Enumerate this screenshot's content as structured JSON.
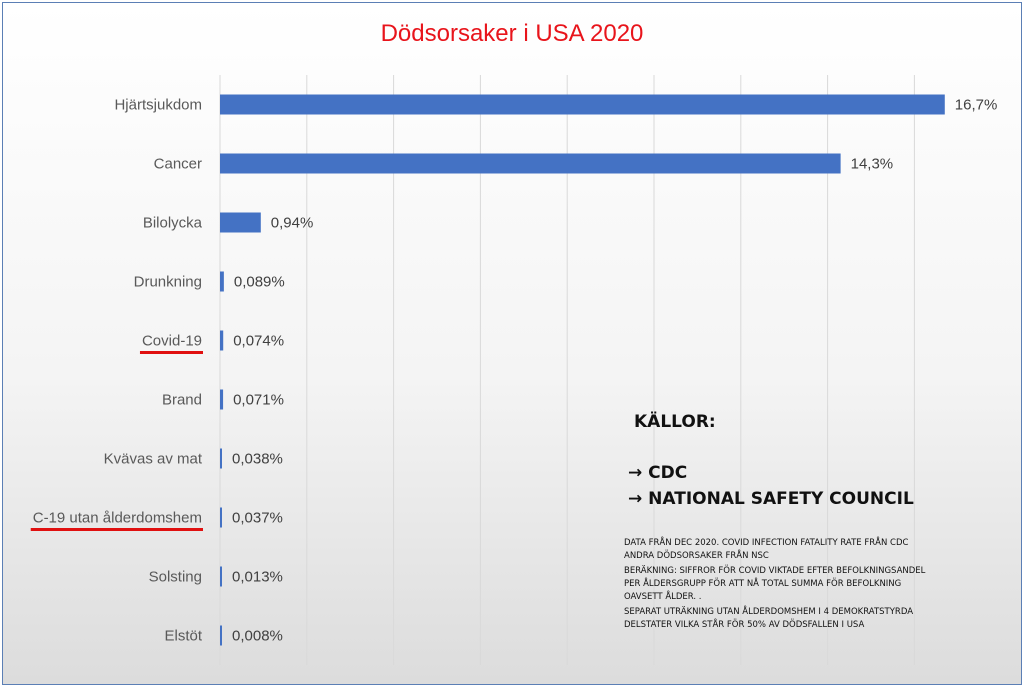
{
  "chart_data": {
    "type": "bar",
    "orientation": "horizontal",
    "title": "Dödsorsaker i USA 2020",
    "categories": [
      "Hjärtsjukdom",
      "Cancer",
      "Bilolycka",
      "Drunkning",
      "Covid-19",
      "Brand",
      "Kvävas av mat",
      "C-19 utan ålderdomshem",
      "Solsting",
      "Elstöt"
    ],
    "values": [
      16.7,
      14.3,
      0.94,
      0.089,
      0.074,
      0.071,
      0.038,
      0.037,
      0.013,
      0.008
    ],
    "value_labels": [
      "16,7%",
      "14,3%",
      "0,94%",
      "0,089%",
      "0,074%",
      "0,071%",
      "0,038%",
      "0,037%",
      "0,013%",
      "0,008%"
    ],
    "highlighted": [
      "Covid-19",
      "C-19 utan ålderdomshem"
    ],
    "xlim": [
      0,
      18
    ],
    "grid": true,
    "legend": "none",
    "colors": {
      "bar": "#4472c4",
      "title": "#e8141b",
      "underline": "#e01010",
      "grid": "#d9d9d9"
    }
  },
  "sources": {
    "heading": "KÄLLOR:",
    "items": [
      "→ CDC",
      "→ NATIONAL SAFETY COUNCIL"
    ],
    "notes": [
      "DATA FRÅN DEC 2020. COVID INFECTION FATALITY RATE FRÅN CDC\nANDRA DÖDSORSAKER FRÅN NSC",
      "BERÄKNING: SIFFROR FÖR COVID VIKTADE EFTER BEFOLKNINGSANDEL\nPER ÅLDERSGRUPP FÖR ATT NÅ TOTAL SUMMA FÖR BEFOLKNING\nOAVSETT ÅLDER. .",
      "SEPARAT UTRÄKNING UTAN ÅLDERDOMSHEM I 4 DEMOKRATSTYRDA\nDELSTATER VILKA STÅR FÖR 50% AV DÖDSFALLEN I USA"
    ]
  }
}
